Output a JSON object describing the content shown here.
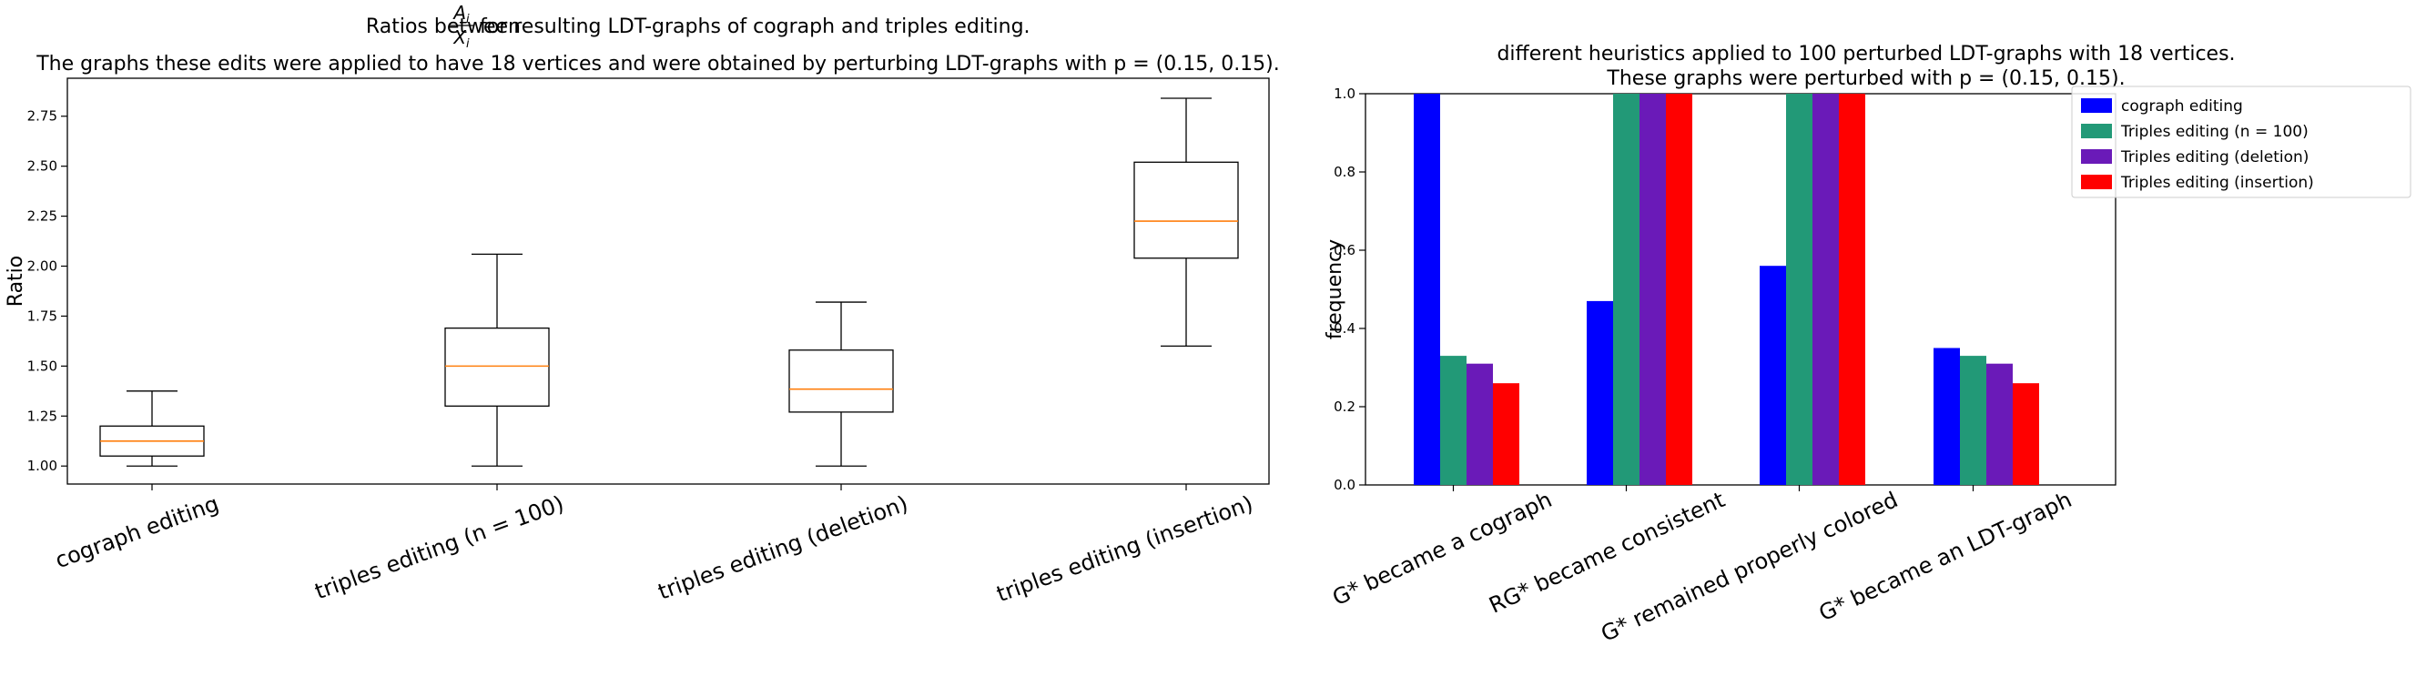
{
  "chart_data": [
    {
      "type": "boxplot",
      "title_line1_pre": "Ratios between ",
      "title_frac_num": "A",
      "title_frac_num_sub": "i",
      "title_frac_den": "X",
      "title_frac_den_sub": "i",
      "title_line1_post": " for resulting LDT-graphs of cograph and triples editing.",
      "title_line2": "The graphs these edits were applied to have 18 vertices and were obtained by perturbing LDT-graphs with p = (0.15, 0.15).",
      "xlabel": "",
      "ylabel": "Ratio",
      "ylim": [
        0.91,
        2.94
      ],
      "yticks": [
        "1.00",
        "1.25",
        "1.50",
        "1.75",
        "2.00",
        "2.25",
        "2.50",
        "2.75"
      ],
      "categories": [
        "cograph editing",
        "triples editing (n = 100)",
        "triples editing (deletion)",
        "triples editing (insertion)"
      ],
      "boxes": [
        {
          "whisker_low": 1.0,
          "q1": 1.05,
          "median": 1.125,
          "q3": 1.2,
          "whisker_high": 1.375
        },
        {
          "whisker_low": 1.0,
          "q1": 1.3,
          "median": 1.5,
          "q3": 1.69,
          "whisker_high": 2.06
        },
        {
          "whisker_low": 1.0,
          "q1": 1.27,
          "median": 1.385,
          "q3": 1.58,
          "whisker_high": 1.82
        },
        {
          "whisker_low": 1.6,
          "q1": 2.04,
          "median": 2.225,
          "q3": 2.52,
          "whisker_high": 2.84
        }
      ],
      "box_color": "#000000",
      "median_color": "#ff7f0e"
    },
    {
      "type": "bar",
      "title_line1": "different heuristics applied to 100 perturbed LDT-graphs with 18 vertices.",
      "title_line2": "These graphs were perturbed with p = (0.15, 0.15).",
      "xlabel": "",
      "ylabel": "frequency",
      "ylim": [
        0.0,
        1.0
      ],
      "yticks": [
        "0.0",
        "0.2",
        "0.4",
        "0.6",
        "0.8",
        "1.0"
      ],
      "categories": [
        "G* became a cograph",
        "RG* became consistent",
        "G* remained properly colored",
        "G* became an LDT-graph"
      ],
      "series": [
        {
          "name": "cograph editing",
          "color": "#0000ff",
          "values": [
            1.0,
            0.47,
            0.56,
            0.35
          ]
        },
        {
          "name": "Triples editing (n = 100)",
          "color": "#229977",
          "values": [
            0.33,
            1.0,
            1.0,
            0.33
          ]
        },
        {
          "name": "Triples editing (deletion)",
          "color": "#6a1ab8",
          "values": [
            0.31,
            1.0,
            1.0,
            0.31
          ]
        },
        {
          "name": "Triples editing (insertion)",
          "color": "#ff0000",
          "values": [
            0.26,
            1.0,
            1.0,
            0.26
          ]
        }
      ],
      "legend_position": "outside top-right",
      "grid": false
    }
  ]
}
